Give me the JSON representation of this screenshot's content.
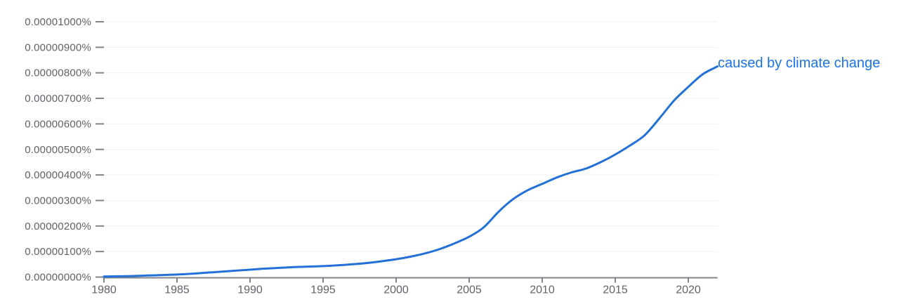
{
  "chart_data": {
    "type": "line",
    "title": "",
    "xlabel": "",
    "ylabel": "",
    "grid": true,
    "legend_position": "end-of-line",
    "x_range": [
      1980,
      2022
    ],
    "x_tick_years": [
      1980,
      1985,
      1990,
      1995,
      2000,
      2005,
      2010,
      2015,
      2020
    ],
    "y_tick_labels": [
      "0.00000000%",
      "0.00000100%",
      "0.00000200%",
      "0.00000300%",
      "0.00000400%",
      "0.00000500%",
      "0.00000600%",
      "0.00000700%",
      "0.00000800%",
      "0.00000900%",
      "0.00001000%"
    ],
    "y_unit": "percent of ngrams, values given in 1e-8 %",
    "ylim_e8": [
      0,
      10
    ],
    "x": [
      1980,
      1981,
      1982,
      1983,
      1984,
      1985,
      1986,
      1987,
      1988,
      1989,
      1990,
      1991,
      1992,
      1993,
      1994,
      1995,
      1996,
      1997,
      1998,
      1999,
      2000,
      2001,
      2002,
      2003,
      2004,
      2005,
      2006,
      2007,
      2008,
      2009,
      2010,
      2011,
      2012,
      2013,
      2014,
      2015,
      2016,
      2017,
      2018,
      2019,
      2020,
      2021,
      2022
    ],
    "series": [
      {
        "name": "caused by climate change",
        "color": "#2270d8",
        "label_color": "#1a73e8",
        "values_e8": [
          0.02,
          0.03,
          0.04,
          0.06,
          0.08,
          0.1,
          0.13,
          0.17,
          0.21,
          0.25,
          0.29,
          0.33,
          0.36,
          0.39,
          0.41,
          0.43,
          0.46,
          0.5,
          0.55,
          0.62,
          0.7,
          0.8,
          0.93,
          1.1,
          1.32,
          1.58,
          1.95,
          2.55,
          3.05,
          3.4,
          3.65,
          3.9,
          4.1,
          4.25,
          4.5,
          4.8,
          5.15,
          5.55,
          6.2,
          6.9,
          7.45,
          7.95,
          8.25
        ]
      }
    ],
    "colors": {
      "axis": "#80868b",
      "tick": "#80868b",
      "gridline": "#f1f1f1",
      "axis_text": "#5f6368",
      "background": "#ffffff"
    }
  }
}
